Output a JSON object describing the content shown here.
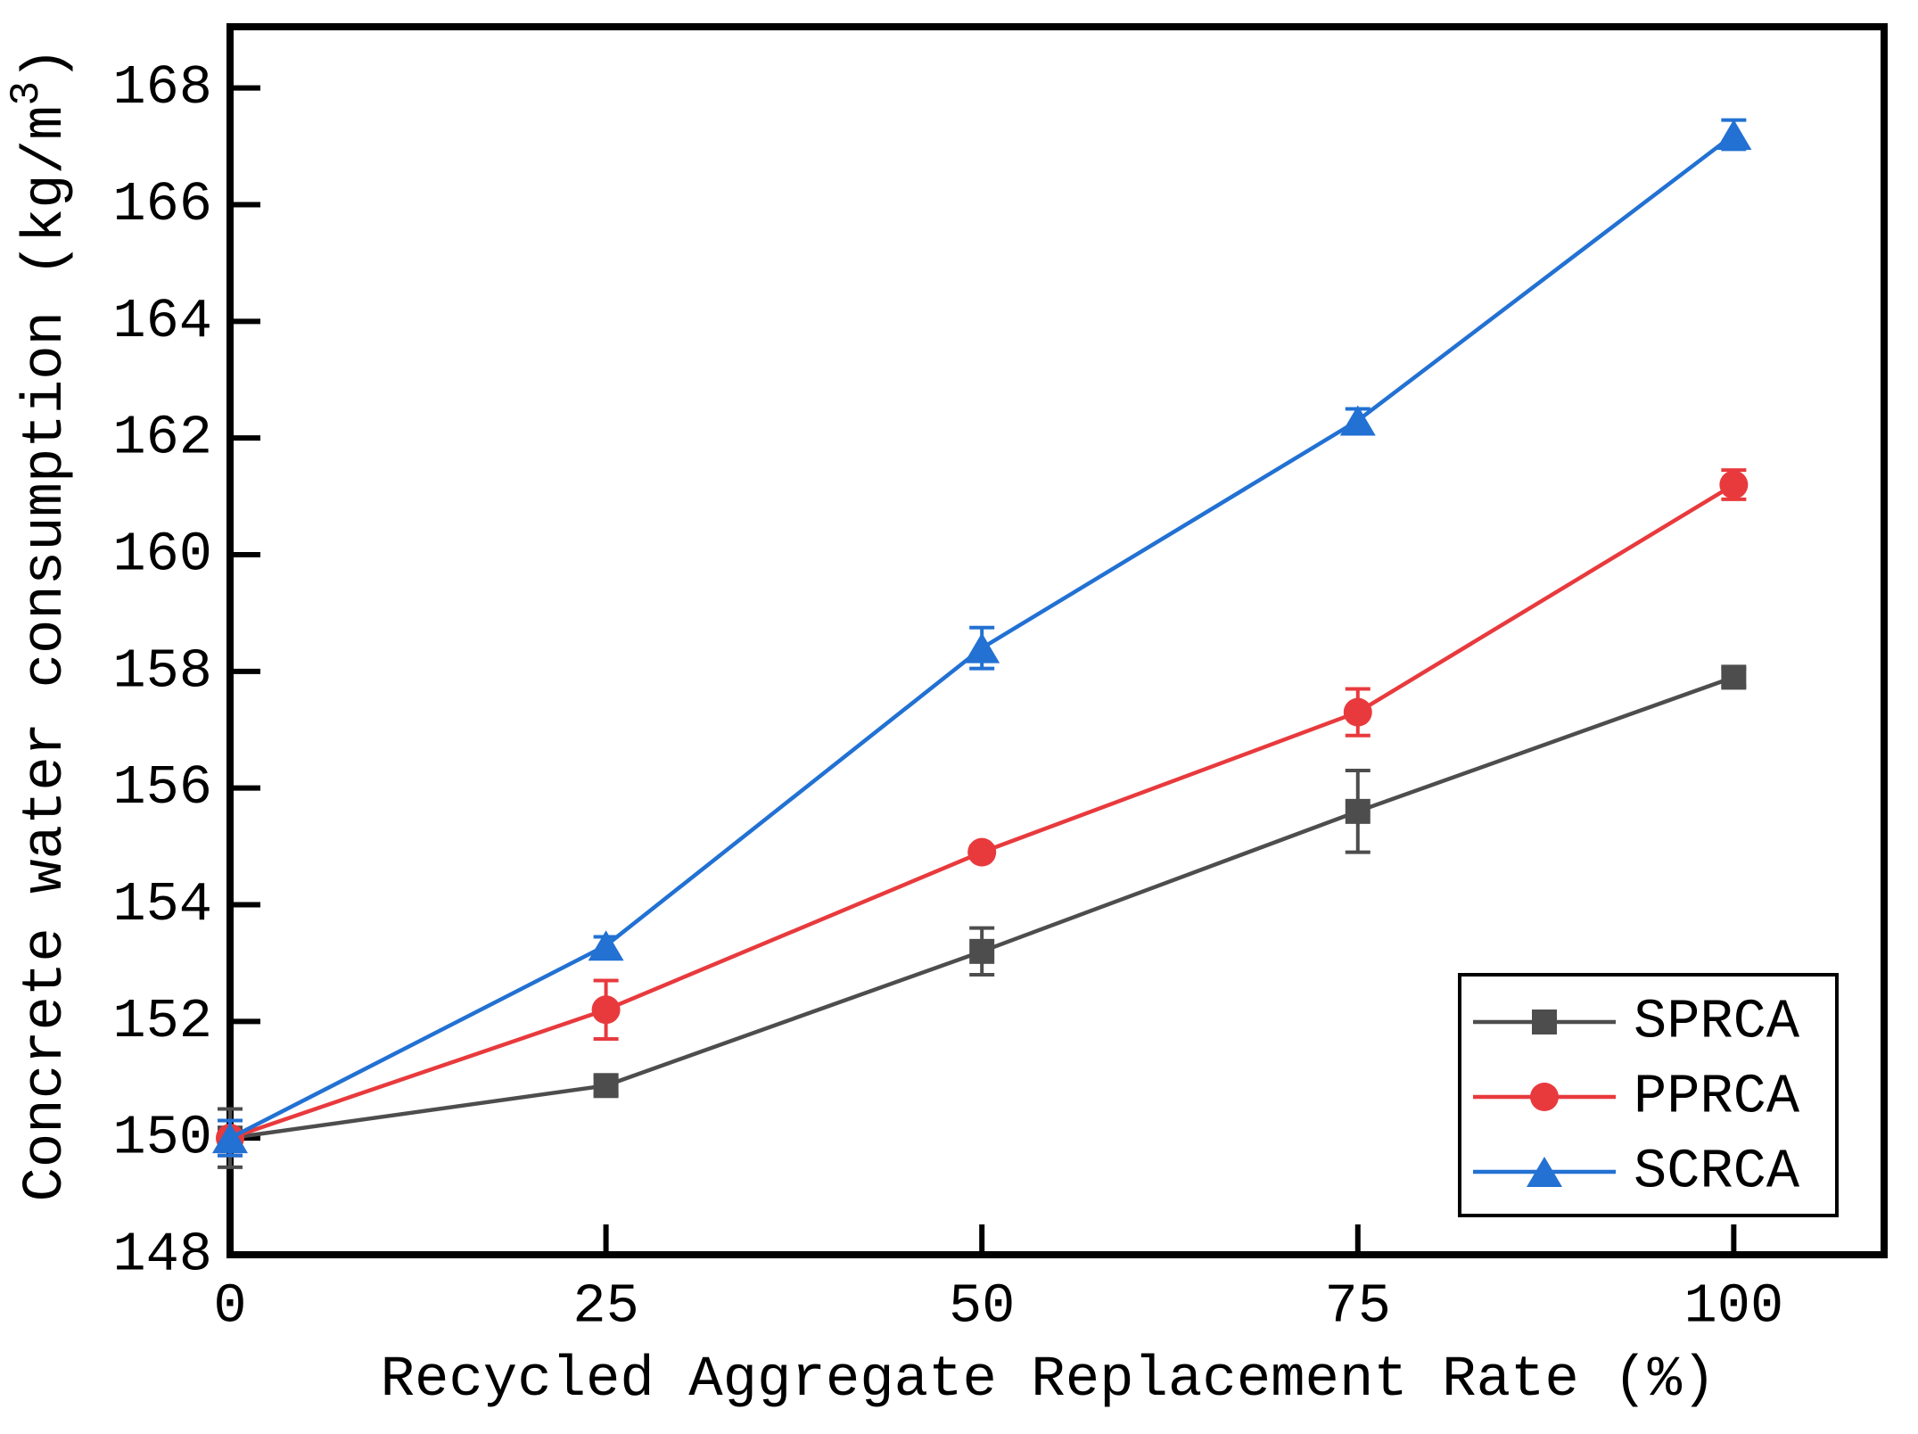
{
  "chart_data": {
    "type": "line",
    "title": "",
    "xlabel": "Recycled Aggregate Replacement Rate (%)",
    "ylabel": "Concrete water consumption (kg/m³)",
    "ylabel_parts": {
      "prefix": "Concrete water consumption (kg/m",
      "superscript": "3",
      "suffix": ")"
    },
    "x": [
      0,
      25,
      50,
      75,
      100
    ],
    "x_ticks": [
      0,
      25,
      50,
      75,
      100
    ],
    "y_ticks": [
      148,
      150,
      152,
      154,
      156,
      158,
      160,
      162,
      164,
      166,
      168
    ],
    "xlim": [
      0,
      110
    ],
    "ylim": [
      148,
      169.05
    ],
    "grid": false,
    "legend_position": "lower right",
    "series": [
      {
        "name": "SPRCA",
        "marker": "square",
        "color": "#4d4d4d",
        "values": [
          150.0,
          150.9,
          153.2,
          155.6,
          157.9
        ],
        "errors": [
          0.5,
          0.15,
          0.4,
          0.7,
          0.15
        ]
      },
      {
        "name": "PPRCA",
        "marker": "circle",
        "color": "#e83a3d",
        "values": [
          150.0,
          152.2,
          154.9,
          157.3,
          161.2
        ],
        "errors": [
          0.3,
          0.5,
          0.1,
          0.4,
          0.25
        ]
      },
      {
        "name": "SCRCA",
        "marker": "triangle",
        "color": "#2271d3",
        "values": [
          150.0,
          153.3,
          158.4,
          162.3,
          167.2
        ],
        "errors": [
          0.3,
          0.15,
          0.35,
          0.2,
          0.25
        ]
      }
    ],
    "axis_color": "#000000",
    "background_color": "#ffffff"
  }
}
